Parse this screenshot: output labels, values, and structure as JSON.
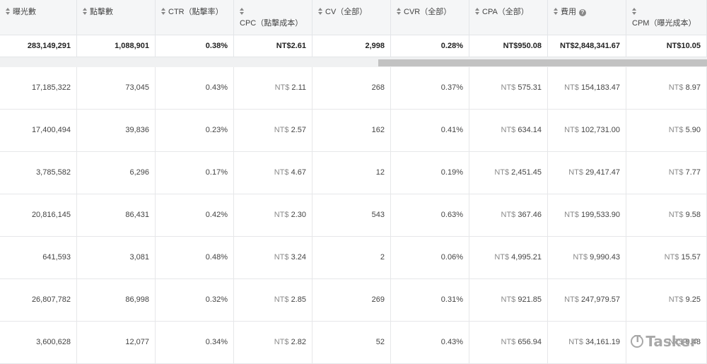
{
  "headers": [
    {
      "label": "曝光數",
      "help": false
    },
    {
      "label": "點擊數",
      "help": false
    },
    {
      "label": "CTR（點擊率）",
      "help": false
    },
    {
      "label": "CPC（點擊成本）",
      "help": false
    },
    {
      "label": "CV（全部）",
      "help": false
    },
    {
      "label": "CVR（全部）",
      "help": false
    },
    {
      "label": "CPA（全部）",
      "help": false
    },
    {
      "label": "費用",
      "help": true,
      "help_glyph": "?"
    },
    {
      "label": "CPM（曝光成本）",
      "help": false
    }
  ],
  "summary": [
    "283,149,291",
    "1,088,901",
    "0.38%",
    "NT$2.61",
    "2,998",
    "0.28%",
    "NT$950.08",
    "NT$2,848,341.67",
    "NT$10.05"
  ],
  "currency_prefix": "NT$",
  "rows": [
    [
      "17,185,322",
      "73,045",
      "0.43%",
      "2.11",
      "268",
      "0.37%",
      "575.31",
      "154,183.47",
      "8.97"
    ],
    [
      "17,400,494",
      "39,836",
      "0.23%",
      "2.57",
      "162",
      "0.41%",
      "634.14",
      "102,731.00",
      "5.90"
    ],
    [
      "3,785,582",
      "6,296",
      "0.17%",
      "4.67",
      "12",
      "0.19%",
      "2,451.45",
      "29,417.47",
      "7.77"
    ],
    [
      "20,816,145",
      "86,431",
      "0.42%",
      "2.30",
      "543",
      "0.63%",
      "367.46",
      "199,533.90",
      "9.58"
    ],
    [
      "641,593",
      "3,081",
      "0.48%",
      "3.24",
      "2",
      "0.06%",
      "4,995.21",
      "9,990.43",
      "15.57"
    ],
    [
      "26,807,782",
      "86,998",
      "0.32%",
      "2.85",
      "269",
      "0.31%",
      "921.85",
      "247,979.57",
      "9.25"
    ],
    [
      "3,600,628",
      "12,077",
      "0.34%",
      "2.82",
      "52",
      "0.43%",
      "656.94",
      "34,161.19",
      "9.48"
    ]
  ],
  "currency_columns": [
    3,
    6,
    7,
    8
  ],
  "watermark": "Tasker",
  "colors": {
    "header_bg": "#f5f6f7",
    "border": "#e3e5e8",
    "scroll_thumb": "#c2c2c2"
  }
}
